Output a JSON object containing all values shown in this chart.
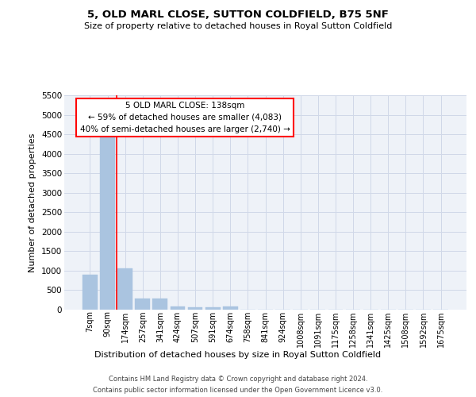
{
  "title_line1": "5, OLD MARL CLOSE, SUTTON COLDFIELD, B75 5NF",
  "title_line2": "Size of property relative to detached houses in Royal Sutton Coldfield",
  "xlabel": "Distribution of detached houses by size in Royal Sutton Coldfield",
  "ylabel": "Number of detached properties",
  "footer_line1": "Contains HM Land Registry data © Crown copyright and database right 2024.",
  "footer_line2": "Contains public sector information licensed under the Open Government Licence v3.0.",
  "bar_labels": [
    "7sqm",
    "90sqm",
    "174sqm",
    "257sqm",
    "341sqm",
    "424sqm",
    "507sqm",
    "591sqm",
    "674sqm",
    "758sqm",
    "841sqm",
    "924sqm",
    "1008sqm",
    "1091sqm",
    "1175sqm",
    "1258sqm",
    "1341sqm",
    "1425sqm",
    "1508sqm",
    "1592sqm",
    "1675sqm"
  ],
  "bar_values": [
    900,
    4550,
    1060,
    295,
    290,
    80,
    65,
    55,
    80,
    0,
    0,
    0,
    0,
    0,
    0,
    0,
    0,
    0,
    0,
    0,
    0
  ],
  "bar_color": "#aac4e0",
  "bar_edge_color": "#aac4e0",
  "grid_color": "#d0d8e8",
  "background_color": "#eef2f8",
  "annotation_line1": "5 OLD MARL CLOSE: 138sqm",
  "annotation_line2": "← 59% of detached houses are smaller (4,083)",
  "annotation_line3": "40% of semi-detached houses are larger (2,740) →",
  "annotation_box_color": "white",
  "annotation_box_edge_color": "red",
  "vline_color": "red",
  "ylim": [
    0,
    5500
  ],
  "yticks": [
    0,
    500,
    1000,
    1500,
    2000,
    2500,
    3000,
    3500,
    4000,
    4500,
    5000,
    5500
  ],
  "title1_fontsize": 9.5,
  "title2_fontsize": 8,
  "ylabel_fontsize": 8,
  "xlabel_fontsize": 8,
  "footer_fontsize": 6,
  "xtick_fontsize": 7,
  "ytick_fontsize": 7.5
}
